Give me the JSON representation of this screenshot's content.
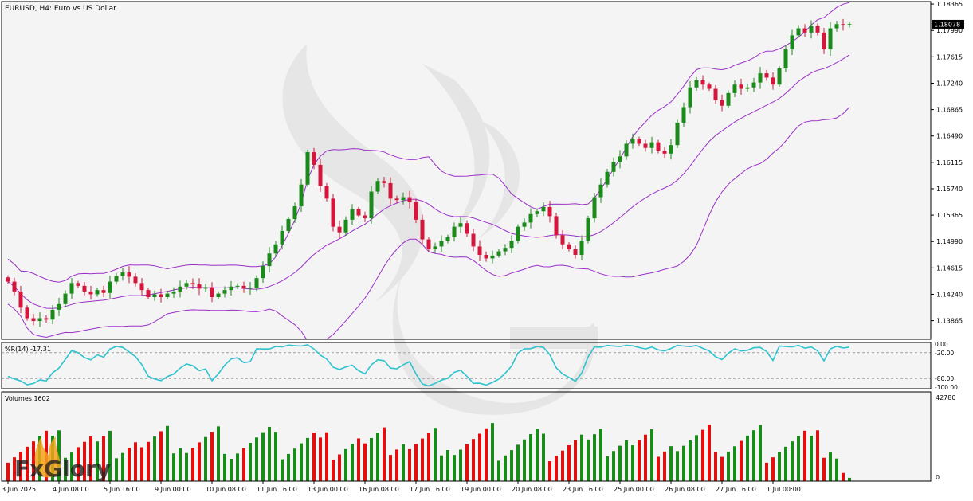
{
  "chart_title": "EURUSD, H4:  Euro vs US Dollar",
  "logo_text": "FxGlory",
  "colors": {
    "background": "#f4f4f4",
    "frame": "#000000",
    "bull": "#1a8a1a",
    "bear": "#d4163c",
    "band": "#9b30c8",
    "wr_line": "#2ec3cf",
    "level_dash": "#a0a0a0",
    "vol_up": "#1a8a1a",
    "vol_down": "#e01010"
  },
  "price_axis": {
    "ticks": [
      "1.18365",
      "1.17990",
      "1.17615",
      "1.17240",
      "1.16865",
      "1.16490",
      "1.16115",
      "1.15740",
      "1.15365",
      "1.14990",
      "1.14615",
      "1.14240",
      "1.13865"
    ],
    "current_price": "1.18078",
    "ylim": [
      1.136,
      1.184
    ]
  },
  "time_axis": {
    "labels": [
      "3 Jun 2025",
      "4 Jun 08:00",
      "5 Jun 16:00",
      "9 Jun 00:00",
      "10 Jun 08:00",
      "11 Jun 16:00",
      "13 Jun 00:00",
      "16 Jun 08:00",
      "17 Jun 16:00",
      "19 Jun 00:00",
      "20 Jun 08:00",
      "23 Jun 16:00",
      "25 Jun 00:00",
      "26 Jun 08:00",
      "27 Jun 16:00",
      "1 Jul 00:00"
    ],
    "label_bars": [
      0,
      8,
      16,
      24,
      32,
      40,
      48,
      56,
      64,
      72,
      80,
      88,
      96,
      104,
      112,
      120
    ]
  },
  "wr_panel": {
    "label": "%R(14) -17.31",
    "ticks": [
      "0.00",
      "-20.00",
      "-80.00",
      "-100.00"
    ],
    "levels": [
      -20,
      -80
    ]
  },
  "volume_panel": {
    "label": "Volumes 1602",
    "ticks": [
      "42780",
      "0"
    ],
    "max": 42780
  },
  "chart_data": {
    "type": "candlestick",
    "symbol": "EURUSD",
    "timeframe": "H4",
    "closes": [
      1.1442,
      1.1428,
      1.1405,
      1.139,
      1.1386,
      1.139,
      1.1388,
      1.1402,
      1.141,
      1.1425,
      1.144,
      1.1436,
      1.1428,
      1.1424,
      1.143,
      1.1426,
      1.1442,
      1.145,
      1.1455,
      1.1449,
      1.144,
      1.143,
      1.142,
      1.1424,
      1.142,
      1.1425,
      1.1428,
      1.1435,
      1.144,
      1.1438,
      1.1432,
      1.1434,
      1.142,
      1.1425,
      1.143,
      1.1435,
      1.1436,
      1.1432,
      1.1433,
      1.1447,
      1.1464,
      1.1482,
      1.1495,
      1.1514,
      1.1531,
      1.1549,
      1.158,
      1.1626,
      1.1608,
      1.1578,
      1.156,
      1.152,
      1.1512,
      1.153,
      1.1545,
      1.1536,
      1.1532,
      1.157,
      1.1585,
      1.1582,
      1.156,
      1.1558,
      1.1562,
      1.1555,
      1.153,
      1.1502,
      1.1488,
      1.1492,
      1.15,
      1.1505,
      1.152,
      1.1525,
      1.151,
      1.1492,
      1.148,
      1.1475,
      1.1479,
      1.1485,
      1.149,
      1.15,
      1.152,
      1.1526,
      1.1538,
      1.1542,
      1.1548,
      1.1535,
      1.1508,
      1.1495,
      1.1488,
      1.148,
      1.15,
      1.1532,
      1.1562,
      1.158,
      1.1598,
      1.1612,
      1.162,
      1.1638,
      1.1645,
      1.1638,
      1.1632,
      1.164,
      1.1628,
      1.1624,
      1.1636,
      1.1668,
      1.169,
      1.1718,
      1.1728,
      1.1722,
      1.1716,
      1.17,
      1.1692,
      1.171,
      1.1722,
      1.1716,
      1.1718,
      1.1725,
      1.1738,
      1.1732,
      1.1722,
      1.1745,
      1.1772,
      1.1792,
      1.1802,
      1.1796,
      1.1805,
      1.1796,
      1.1772,
      1.1802,
      1.1808,
      1.1806,
      1.1808
    ]
  }
}
